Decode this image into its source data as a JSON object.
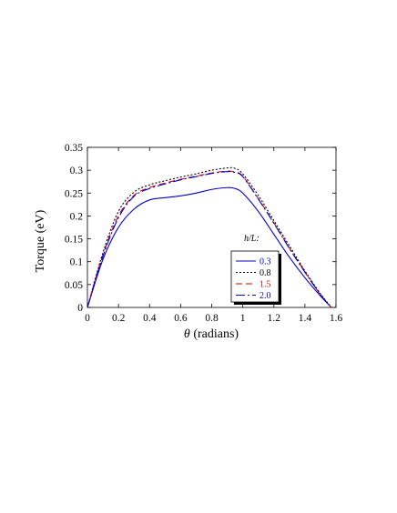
{
  "chart_data": {
    "type": "line",
    "xlabel_symbol": "θ",
    "xlabel_text": " (radians)",
    "ylabel": "Torque  (eV)",
    "xlim": [
      0,
      1.6
    ],
    "ylim": [
      0,
      0.35
    ],
    "xticks": [
      0,
      0.2,
      0.4,
      0.6,
      0.8,
      1,
      1.2,
      1.4,
      1.6
    ],
    "xtick_labels": [
      "0",
      "0.2",
      "0.4",
      "0.6",
      "0.8",
      "1",
      "1.2",
      "1.4",
      "1.6"
    ],
    "yticks": [
      0,
      0.05,
      0.1,
      0.15,
      0.2,
      0.25,
      0.3,
      0.35
    ],
    "ytick_labels": [
      "0",
      "0.05",
      "0.1",
      "0.15",
      "0.2",
      "0.25",
      "0.3",
      "0.35"
    ],
    "legend_title": "h/L:",
    "legend_position": "lower-right",
    "grid": false,
    "x": [
      0,
      0.1,
      0.2,
      0.3,
      0.4,
      0.5,
      0.6,
      0.7,
      0.8,
      0.9,
      0.95,
      1.0,
      1.1,
      1.2,
      1.3,
      1.4,
      1.5,
      1.57
    ],
    "series": [
      {
        "name": "0.3",
        "color": "#0000cc",
        "dash": "",
        "values": [
          0,
          0.105,
          0.175,
          0.215,
          0.235,
          0.24,
          0.244,
          0.25,
          0.258,
          0.262,
          0.26,
          0.25,
          0.21,
          0.16,
          0.11,
          0.065,
          0.025,
          0
        ]
      },
      {
        "name": "0.8",
        "color": "#000000",
        "dash": "2,2",
        "values": [
          0,
          0.12,
          0.21,
          0.252,
          0.268,
          0.277,
          0.285,
          0.292,
          0.3,
          0.305,
          0.304,
          0.292,
          0.245,
          0.19,
          0.135,
          0.08,
          0.03,
          0
        ]
      },
      {
        "name": "1.5",
        "color": "#dd0000",
        "dash": "7,4",
        "values": [
          0,
          0.115,
          0.2,
          0.245,
          0.262,
          0.272,
          0.28,
          0.287,
          0.294,
          0.298,
          0.296,
          0.287,
          0.238,
          0.185,
          0.13,
          0.078,
          0.028,
          0
        ]
      },
      {
        "name": "2.0",
        "color": "#0000cc",
        "dash": "10,3,2,3",
        "values": [
          0,
          0.112,
          0.196,
          0.243,
          0.26,
          0.27,
          0.279,
          0.286,
          0.293,
          0.297,
          0.295,
          0.286,
          0.237,
          0.184,
          0.129,
          0.077,
          0.028,
          0
        ]
      }
    ]
  }
}
